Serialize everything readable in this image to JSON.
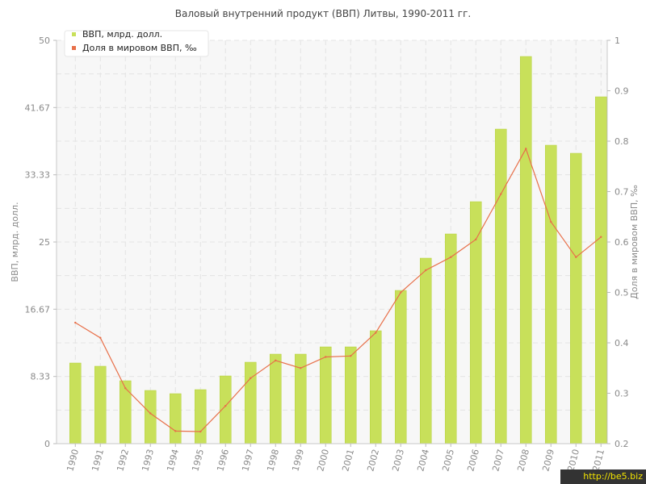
{
  "chart_data": {
    "type": "bar",
    "title": "Валовый внутренний продукт (ВВП) Литвы, 1990-2011 гг.",
    "categories": [
      "1990",
      "1991",
      "1992",
      "1993",
      "1994",
      "1995",
      "1996",
      "1997",
      "1998",
      "1999",
      "2000",
      "2001",
      "2002",
      "2003",
      "2004",
      "2005",
      "2006",
      "2007",
      "2008",
      "2009",
      "2010",
      "2011"
    ],
    "series": [
      {
        "name": "ВВП, млрд. долл.",
        "type": "bar",
        "axis": "left",
        "color": "#c8e05a",
        "values": [
          10.0,
          9.6,
          7.8,
          6.6,
          6.2,
          6.7,
          8.4,
          10.1,
          11.1,
          11.1,
          12.0,
          12.0,
          14.0,
          19.0,
          23.0,
          26.0,
          30.0,
          39.0,
          48.0,
          37.0,
          36.0,
          43.0
        ]
      },
      {
        "name": "Доля в мировом ВВП, ‰",
        "type": "line",
        "axis": "right",
        "color": "#e8704a",
        "values": [
          0.44,
          0.41,
          0.31,
          0.26,
          0.225,
          0.224,
          0.275,
          0.33,
          0.365,
          0.35,
          0.372,
          0.374,
          0.42,
          0.5,
          0.544,
          0.57,
          0.605,
          0.695,
          0.785,
          0.64,
          0.57,
          0.61
        ]
      }
    ],
    "ylabel": "ВВП, млрд. долл.",
    "y2label": "Доля в мировом ВВП, ‰",
    "ylim": [
      0,
      50
    ],
    "y2lim": [
      0.2,
      1
    ],
    "yticks": [
      "0",
      "8.33",
      "16.67",
      "25",
      "33.33",
      "41.67",
      "50"
    ],
    "y2ticks": [
      "0.2",
      "0.3",
      "0.4",
      "0.5",
      "0.6",
      "0.7",
      "0.8",
      "0.9",
      "1"
    ],
    "grid": true,
    "legend_position": "top-left"
  },
  "watermark": "http://be5.biz",
  "colors": {
    "bar": "#c8e05a",
    "bar_edge": "#b6d23e",
    "line": "#e8704a",
    "grid": "#e4e4e4",
    "plot_bg": "#f7f7f7"
  }
}
